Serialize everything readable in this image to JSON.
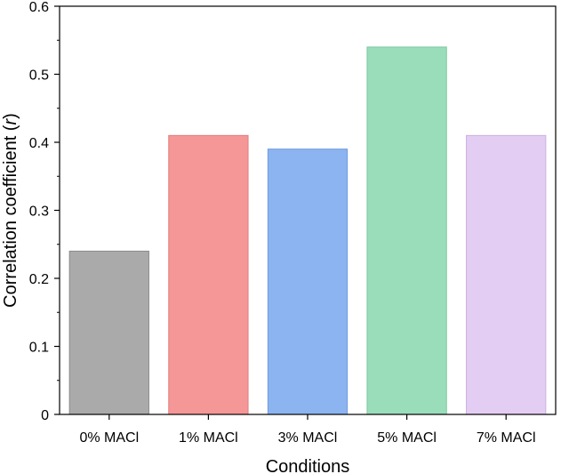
{
  "chart_data": {
    "type": "bar",
    "title": "",
    "xlabel": "Conditions",
    "ylabel": "Correlation coefficient (r)",
    "ylabel_parts": {
      "before": "Correlation coefficient (",
      "italic": "r",
      "after": ")"
    },
    "categories": [
      "0% MACl",
      "1% MACl",
      "3% MACl",
      "5% MACl",
      "7% MACl"
    ],
    "values": [
      0.24,
      0.41,
      0.39,
      0.54,
      0.41
    ],
    "ylim": [
      0,
      0.6
    ],
    "yticks": [
      0,
      0.1,
      0.2,
      0.3,
      0.4,
      0.5,
      0.6
    ],
    "ytick_labels": [
      "0",
      "0.1",
      "0.2",
      "0.3",
      "0.4",
      "0.5",
      "0.6"
    ],
    "grid": false,
    "colors": {
      "fills": [
        "#aaaaaa",
        "#f59797",
        "#8bb4f0",
        "#9addba",
        "#e4cdf2"
      ],
      "edges": [
        "#8a8a8a",
        "#e37b7b",
        "#6f9ae0",
        "#7cc79e",
        "#cbb0e0"
      ]
    }
  }
}
